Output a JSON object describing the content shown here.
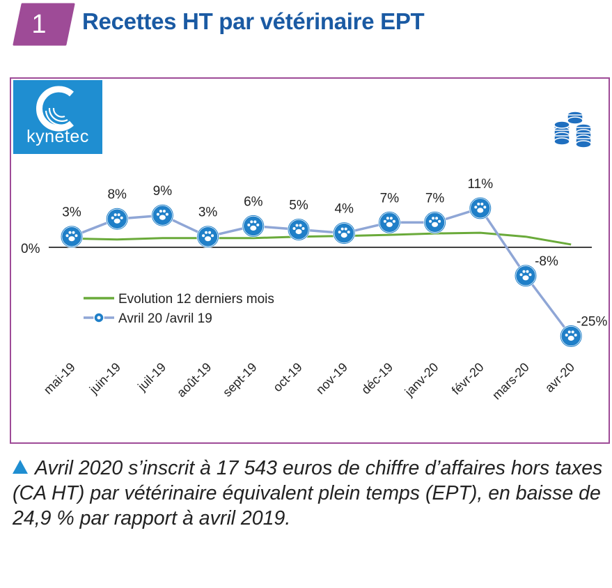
{
  "header": {
    "number": "1",
    "title": "Recettes HT par vétérinaire EPT",
    "badge_color": "#9e4b97",
    "title_color": "#1a5aa3"
  },
  "logo": {
    "text": "kynetec",
    "icon": "kynetec-c-logo-icon",
    "color": "#1f8ed1"
  },
  "coins_icon": "coins-stack-icon",
  "chart_data": {
    "type": "line",
    "categories": [
      "mai-19",
      "juin-19",
      "juil-19",
      "août-19",
      "sept-19",
      "oct-19",
      "nov-19",
      "déc-19",
      "janv-20",
      "févr-20",
      "mars-20",
      "avr-20"
    ],
    "series": [
      {
        "name": "Evolution 12 derniers mois",
        "color": "#6aaa3a",
        "values": [
          2.5,
          2.2,
          2.6,
          2.6,
          2.6,
          3.0,
          3.2,
          3.5,
          3.9,
          4.1,
          3.0,
          0.8
        ]
      },
      {
        "name": "Avril 20 /avril 19",
        "color": "#8fa6d6",
        "marker": "paw-icon",
        "values": [
          3,
          8,
          9,
          3,
          6,
          5,
          4,
          7,
          7,
          11,
          -8,
          -25
        ],
        "labels": [
          "3%",
          "8%",
          "9%",
          "3%",
          "6%",
          "5%",
          "4%",
          "7%",
          "7%",
          "11%",
          "-8%",
          "-25%"
        ]
      }
    ],
    "zero_label": "0%",
    "ylim": [
      -30,
      20
    ],
    "legend_position": "center-left",
    "grid": false
  },
  "caption": "Avril 2020 s’inscrit à 17 543 euros de chiffre d’affaires hors taxes (CA HT) par vétérinaire équivalent plein temps (EPT), en baisse de 24,9 % par rapport à avril 2019."
}
